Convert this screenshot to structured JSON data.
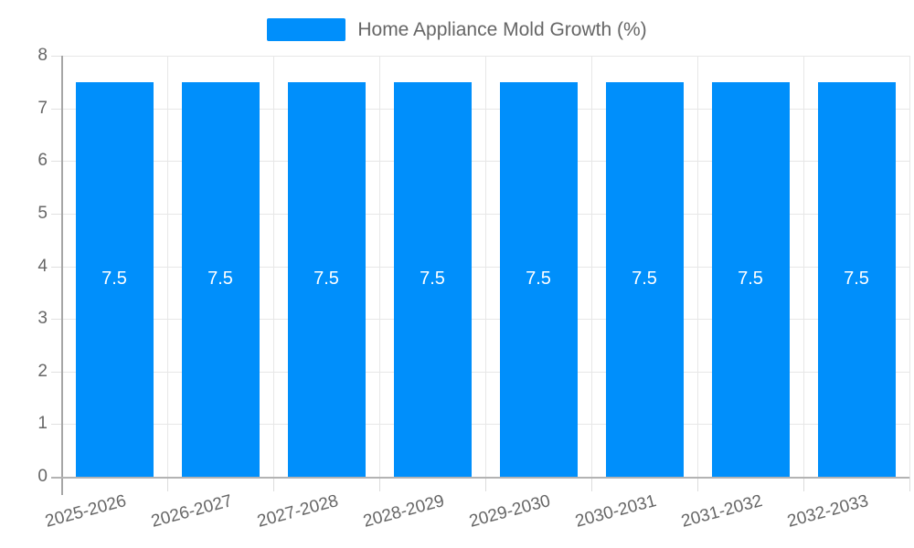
{
  "legend": {
    "label": "Home Appliance Mold Growth (%)"
  },
  "chart_data": {
    "type": "bar",
    "title": "Home Appliance Mold Growth (%)",
    "categories": [
      "2025-2026",
      "2026-2027",
      "2027-2028",
      "2028-2029",
      "2029-2030",
      "2030-2031",
      "2031-2032",
      "2032-2033"
    ],
    "values": [
      7.5,
      7.5,
      7.5,
      7.5,
      7.5,
      7.5,
      7.5,
      7.5
    ],
    "bar_labels": [
      "7.5",
      "7.5",
      "7.5",
      "7.5",
      "7.5",
      "7.5",
      "7.5",
      "7.5"
    ],
    "xlabel": "",
    "ylabel": "",
    "ylim": [
      0,
      8
    ],
    "yticks": [
      0,
      1,
      2,
      3,
      4,
      5,
      6,
      7,
      8
    ],
    "grid": true,
    "legend_position": "top",
    "colors": {
      "bar": "#008ffb",
      "grid": "#e7e7e7",
      "axis": "#b3b3b3",
      "tick_text": "#666666",
      "value_label": "#ffffff"
    }
  }
}
